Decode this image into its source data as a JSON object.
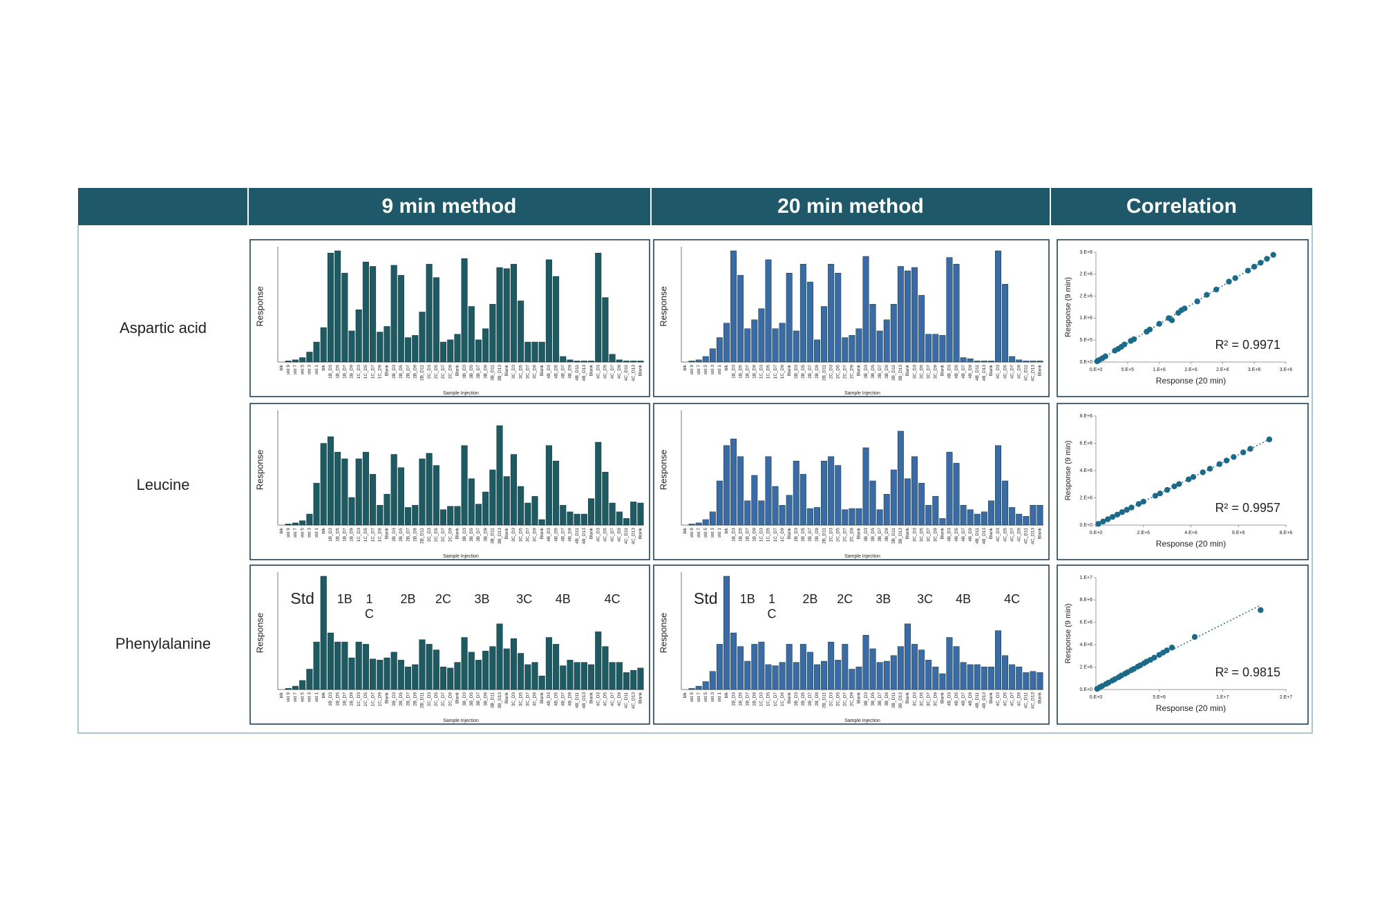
{
  "table": {
    "headers": [
      "9 min method",
      "20 min method",
      "Correlation"
    ],
    "rows": [
      "Aspartic acid",
      "Leucine",
      "Phenylalanine"
    ]
  },
  "chart_data": [
    {
      "type": "bar",
      "color": "#1d5a62",
      "ylim": [
        0,
        100
      ],
      "y_label": "Response",
      "x_label": "Sample Injection",
      "categories": [
        "blk",
        "std 9",
        "std 7",
        "std 5",
        "std 3",
        "std 1",
        "blk",
        "1B_D3",
        "1B_D5",
        "1B_D7",
        "1B_D9",
        "1C_D3",
        "1C_D5",
        "1C_D7",
        "1C_D9",
        "Blank",
        "2B_D3",
        "2B_D5",
        "2B_D7",
        "2B_D9",
        "2B_D11",
        "2C_D3",
        "2C_D5",
        "2C_D7",
        "2C_D9",
        "Blank",
        "3B_D3",
        "3B_D5",
        "3B_D7",
        "3B_D9",
        "3B_D11",
        "3B_D13",
        "Blank",
        "3C_D3",
        "3C_D5",
        "3C_D7",
        "3C_D9",
        "Blank",
        "4B_D3",
        "4B_D5",
        "4B_D7",
        "4B_D9",
        "4B_D11",
        "4B_D13",
        "Blank",
        "4C_D3",
        "4C_D5",
        "4C_D7",
        "4C_D9",
        "4C_D11",
        "4C_D13",
        "Blank"
      ],
      "values": [
        0,
        1,
        2,
        4,
        9,
        18,
        31,
        98,
        100,
        80,
        28,
        47,
        90,
        86,
        27,
        32,
        87,
        78,
        22,
        24,
        45,
        88,
        76,
        18,
        20,
        25,
        93,
        50,
        20,
        30,
        52,
        85,
        84,
        88,
        55,
        18,
        18,
        18,
        92,
        77,
        5,
        2,
        1,
        1,
        1,
        98,
        58,
        7,
        2,
        1,
        1,
        1
      ]
    },
    {
      "type": "bar",
      "color": "#3b6ba5",
      "ylim": [
        0,
        100
      ],
      "y_label": "Response",
      "x_label": "Sample Injection",
      "categories": [
        "blk",
        "std 9",
        "std 7",
        "std 5",
        "std 3",
        "std 1",
        "blk",
        "1B_D3",
        "1B_D5",
        "1B_D7",
        "1B_D9",
        "1C_D3",
        "1C_D5",
        "1C_D7",
        "1C_D9",
        "Blank",
        "2B_D3",
        "2B_D5",
        "2B_D7",
        "2B_D9",
        "2B_D11",
        "2C_D3",
        "2C_D5",
        "2C_D7",
        "2C_D9",
        "Blank",
        "3B_D3",
        "3B_D5",
        "3B_D7",
        "3B_D9",
        "3B_D11",
        "3B_D13",
        "Blank",
        "3C_D3",
        "3C_D5",
        "3C_D7",
        "3C_D9",
        "Blank",
        "4B_D3",
        "4B_D5",
        "4B_D7",
        "4B_D9",
        "4B_D11",
        "4B_D13",
        "Blank",
        "4C_D3",
        "4C_D5",
        "4C_D7",
        "4C_D9",
        "4C_D11",
        "4C_D13",
        "Blank"
      ],
      "values": [
        0,
        1,
        2,
        5,
        12,
        22,
        35,
        100,
        78,
        30,
        38,
        48,
        92,
        30,
        35,
        80,
        28,
        88,
        72,
        20,
        50,
        88,
        80,
        22,
        24,
        30,
        95,
        52,
        28,
        38,
        52,
        86,
        82,
        85,
        60,
        25,
        25,
        24,
        94,
        88,
        4,
        3,
        1,
        1,
        1,
        100,
        70,
        5,
        2,
        1,
        1,
        1
      ]
    },
    {
      "type": "scatter",
      "color": "#1b6a8a",
      "trendline": true,
      "x_label": "Response (20 min)",
      "y_label": "Response (9 min)",
      "annotation": "R² = 0.9971",
      "xlim": [
        0,
        3000000
      ],
      "ylim": [
        0,
        2500000
      ],
      "xticks": [
        {
          "value": 0,
          "label": "0.E+0"
        },
        {
          "value": 500000,
          "label": "5.E+5"
        },
        {
          "value": 1000000,
          "label": "1.E+6"
        },
        {
          "value": 1500000,
          "label": "2.E+6"
        },
        {
          "value": 2000000,
          "label": "2.E+6"
        },
        {
          "value": 2500000,
          "label": "3.E+6"
        },
        {
          "value": 3000000,
          "label": "3.E+6"
        }
      ],
      "yticks": [
        {
          "value": 0,
          "label": "0.E+0"
        },
        {
          "value": 500000,
          "label": "5.E+5"
        },
        {
          "value": 1000000,
          "label": "1.E+6"
        },
        {
          "value": 1500000,
          "label": "2.E+6"
        },
        {
          "value": 2000000,
          "label": "2.E+6"
        },
        {
          "value": 2500000,
          "label": "3.E+6"
        }
      ],
      "x": [
        20000,
        50000,
        100000,
        150000,
        300000,
        350000,
        400000,
        450000,
        550000,
        600000,
        800000,
        850000,
        1000000,
        1150000,
        1200000,
        1300000,
        1350000,
        1400000,
        1600000,
        1750000,
        1900000,
        2100000,
        2200000,
        2400000,
        2500000,
        2600000,
        2700000,
        2800000
      ],
      "values": [
        18000,
        45000,
        85000,
        130000,
        260000,
        300000,
        345000,
        400000,
        480000,
        520000,
        690000,
        740000,
        870000,
        1000000,
        950000,
        1120000,
        1180000,
        1220000,
        1380000,
        1530000,
        1650000,
        1830000,
        1910000,
        2080000,
        2170000,
        2260000,
        2350000,
        2440000
      ]
    },
    {
      "type": "bar",
      "color": "#1d5a62",
      "ylim": [
        0,
        100
      ],
      "y_label": "Response",
      "x_label": "Sample Injection",
      "categories": [
        "blk",
        "std 9",
        "std 7",
        "std 5",
        "std 3",
        "std 1",
        "blk",
        "1B_D3",
        "1B_D5",
        "1B_D7",
        "1B_D9",
        "1C_D3",
        "1C_D5",
        "1C_D7",
        "1C_D9",
        "Blank",
        "2B_D3",
        "2B_D5",
        "2B_D7",
        "2B_D9",
        "2B_D11",
        "2C_D3",
        "2C_D5",
        "2C_D7",
        "2C_D9",
        "Blank",
        "3B_D3",
        "3B_D5",
        "3B_D7",
        "3B_D9",
        "3B_D11",
        "3B_D13",
        "Blank",
        "3C_D3",
        "3C_D5",
        "3C_D7",
        "3C_D9",
        "Blank",
        "4B_D3",
        "4B_D5",
        "4B_D7",
        "4B_D9",
        "4B_D11",
        "4B_D13",
        "Blank",
        "4C_D3",
        "4C_D5",
        "4C_D7",
        "4C_D9",
        "4C_D11",
        "4C_D13",
        "Blank"
      ],
      "values": [
        0,
        1,
        2,
        4,
        10,
        38,
        74,
        80,
        66,
        60,
        25,
        60,
        66,
        46,
        18,
        28,
        64,
        52,
        16,
        18,
        60,
        65,
        54,
        14,
        17,
        17,
        72,
        42,
        19,
        30,
        50,
        90,
        44,
        64,
        35,
        20,
        26,
        5,
        72,
        58,
        18,
        12,
        10,
        10,
        24,
        75,
        48,
        20,
        12,
        6,
        21,
        20
      ]
    },
    {
      "type": "bar",
      "color": "#3b6ba5",
      "ylim": [
        0,
        100
      ],
      "y_label": "Response",
      "x_label": "Sample Injection",
      "categories": [
        "blk",
        "std 9",
        "std 7",
        "std 5",
        "std 3",
        "std 1",
        "blk",
        "1B_D3",
        "1B_D5",
        "1B_D7",
        "1B_D9",
        "1C_D3",
        "1C_D5",
        "1C_D7",
        "1C_D9",
        "Blank",
        "2B_D3",
        "2B_D5",
        "2B_D7",
        "2B_D9",
        "2B_D11",
        "2C_D3",
        "2C_D5",
        "2C_D7",
        "2C_D9",
        "Blank",
        "3B_D3",
        "3B_D5",
        "3B_D7",
        "3B_D9",
        "3B_D11",
        "3B_D13",
        "Blank",
        "3C_D3",
        "3C_D5",
        "3C_D7",
        "3C_D9",
        "Blank",
        "4B_D3",
        "4B_D5",
        "4B_D7",
        "4B_D9",
        "4B_D11",
        "4B_D13",
        "Blank",
        "4C_D3",
        "4C_D5",
        "4C_D7",
        "4C_D9",
        "4C_D11",
        "4C_D13",
        "Blank"
      ],
      "values": [
        0,
        1,
        2,
        5,
        12,
        40,
        72,
        78,
        62,
        22,
        45,
        22,
        62,
        35,
        18,
        27,
        58,
        46,
        15,
        16,
        58,
        62,
        54,
        14,
        15,
        15,
        70,
        40,
        14,
        28,
        50,
        85,
        42,
        62,
        38,
        18,
        26,
        6,
        66,
        56,
        18,
        14,
        10,
        12,
        22,
        72,
        40,
        16,
        10,
        8,
        18,
        18
      ]
    },
    {
      "type": "scatter",
      "color": "#1b6a8a",
      "trendline": true,
      "x_label": "Response (20 min)",
      "y_label": "Response (9 min)",
      "annotation": "R² = 0.9957",
      "xlim": [
        0,
        8000000
      ],
      "ylim": [
        0,
        8000000
      ],
      "xticks": [
        {
          "value": 0,
          "label": "0.E+0"
        },
        {
          "value": 2000000,
          "label": "2.E+6"
        },
        {
          "value": 4000000,
          "label": "4.E+6"
        },
        {
          "value": 6000000,
          "label": "6.E+6"
        },
        {
          "value": 8000000,
          "label": "8.E+6"
        }
      ],
      "yticks": [
        {
          "value": 0,
          "label": "0.E+0"
        },
        {
          "value": 2000000,
          "label": "2.E+6"
        },
        {
          "value": 4000000,
          "label": "4.E+6"
        },
        {
          "value": 6000000,
          "label": "6.E+6"
        },
        {
          "value": 8000000,
          "label": "8.E+6"
        }
      ],
      "x": [
        100000,
        300000,
        500000,
        700000,
        900000,
        1100000,
        1300000,
        1500000,
        1800000,
        2000000,
        2500000,
        2700000,
        3000000,
        3300000,
        3500000,
        3900000,
        4100000,
        4500000,
        4800000,
        5200000,
        5500000,
        5800000,
        6200000,
        6500000,
        7300000
      ],
      "values": [
        90000,
        260000,
        430000,
        600000,
        770000,
        950000,
        1120000,
        1290000,
        1550000,
        1720000,
        2150000,
        2320000,
        2580000,
        2840000,
        3010000,
        3350000,
        3530000,
        3870000,
        4130000,
        4470000,
        4730000,
        4990000,
        5330000,
        5590000,
        6280000
      ]
    },
    {
      "type": "bar",
      "color": "#1d5a62",
      "ylim": [
        0,
        100
      ],
      "y_label": "Response",
      "x_label": "Sample Injection",
      "annotations": [
        "Std",
        "1B",
        "1\nC",
        "2B",
        "2C",
        "3B",
        "3C",
        "4B",
        "4C"
      ],
      "categories": [
        "blk",
        "std 9",
        "std 7",
        "std 5",
        "std 3",
        "std 1",
        "blk",
        "1B_D3",
        "1B_D5",
        "1B_D7",
        "1B_D9",
        "1C_D3",
        "1C_D5",
        "1C_D7",
        "1C_D9",
        "Blank",
        "2B_D3",
        "2B_D5",
        "2B_D7",
        "2B_D9",
        "2B_D11",
        "2C_D3",
        "2C_D5",
        "2C_D7",
        "2C_D9",
        "Blank",
        "3B_D3",
        "3B_D5",
        "3B_D7",
        "3B_D9",
        "3B_D11",
        "3B_D13",
        "Blank",
        "3C_D3",
        "3C_D5",
        "3C_D7",
        "3C_D9",
        "Blank",
        "4B_D3",
        "4B_D5",
        "4B_D7",
        "4B_D9",
        "4B_D11",
        "4B_D13",
        "Blank",
        "4C_D3",
        "4C_D5",
        "4C_D7",
        "4C_D9",
        "4C_D11",
        "4C_D13",
        "Blank"
      ],
      "values": [
        0,
        1,
        3,
        8,
        18,
        42,
        100,
        50,
        42,
        42,
        28,
        42,
        40,
        27,
        26,
        28,
        33,
        26,
        20,
        22,
        44,
        40,
        35,
        20,
        19,
        24,
        46,
        33,
        26,
        34,
        38,
        58,
        36,
        45,
        32,
        22,
        24,
        12,
        46,
        40,
        21,
        26,
        24,
        24,
        22,
        51,
        38,
        24,
        24,
        15,
        17,
        19
      ]
    },
    {
      "type": "bar",
      "color": "#3b6ba5",
      "ylim": [
        0,
        100
      ],
      "y_label": "Response",
      "x_label": "Sample Injection",
      "annotations": [
        "Std",
        "1B",
        "1\nC",
        "2B",
        "2C",
        "3B",
        "3C",
        "4B",
        "4C"
      ],
      "categories": [
        "blk",
        "std 9",
        "std 7",
        "std 5",
        "std 3",
        "std 1",
        "blk",
        "1B_D3",
        "1B_D5",
        "1B_D7",
        "1B_D9",
        "1C_D3",
        "1C_D5",
        "1C_D7",
        "1C_D9",
        "Blank",
        "2B_D3",
        "2B_D5",
        "2B_D7",
        "2B_D9",
        "2B_D11",
        "2C_D3",
        "2C_D5",
        "2C_D7",
        "2C_D9",
        "Blank",
        "3B_D3",
        "3B_D5",
        "3B_D7",
        "3B_D9",
        "3B_D11",
        "3B_D13",
        "Blank",
        "3C_D3",
        "3C_D5",
        "3C_D7",
        "3C_D9",
        "Blank",
        "4B_D3",
        "4B_D5",
        "4B_D7",
        "4B_D9",
        "4B_D11",
        "4B_D13",
        "Blank",
        "4C_D3",
        "4C_D5",
        "4C_D7",
        "4C_D9",
        "4C_D11",
        "4C_D13",
        "Blank"
      ],
      "values": [
        0,
        1,
        3,
        7,
        16,
        40,
        100,
        50,
        38,
        25,
        40,
        42,
        22,
        21,
        24,
        40,
        24,
        40,
        33,
        22,
        25,
        42,
        26,
        40,
        18,
        20,
        48,
        36,
        24,
        25,
        30,
        38,
        58,
        40,
        35,
        26,
        20,
        14,
        46,
        38,
        24,
        22,
        22,
        20,
        20,
        52,
        30,
        22,
        20,
        15,
        16,
        15
      ]
    },
    {
      "type": "scatter",
      "color": "#1b6a8a",
      "trendline": true,
      "x_label": "Response (20 min)",
      "y_label": "Response (9 min)",
      "annotation": "R² = 0.9815",
      "xlim": [
        0,
        15000000
      ],
      "ylim": [
        0,
        10000000
      ],
      "xticks": [
        {
          "value": 0,
          "label": "0.E+0"
        },
        {
          "value": 5000000,
          "label": "5.E+6"
        },
        {
          "value": 10000000,
          "label": "1.E+7"
        },
        {
          "value": 15000000,
          "label": "2.E+7"
        }
      ],
      "yticks": [
        {
          "value": 0,
          "label": "0.E+0"
        },
        {
          "value": 2000000,
          "label": "2.E+6"
        },
        {
          "value": 4000000,
          "label": "4.E+6"
        },
        {
          "value": 6000000,
          "label": "6.E+6"
        },
        {
          "value": 8000000,
          "label": "8.E+6"
        },
        {
          "value": 10000000,
          "label": "1.E+7"
        }
      ],
      "x": [
        100000,
        300000,
        500000,
        800000,
        1000000,
        1300000,
        1500000,
        1800000,
        2000000,
        2300000,
        2500000,
        2800000,
        3000000,
        3300000,
        3500000,
        3800000,
        4000000,
        4300000,
        4600000,
        5000000,
        5300000,
        5600000,
        6000000,
        7800000,
        13000000
      ],
      "values": [
        60000,
        200000,
        320000,
        500000,
        620000,
        800000,
        930000,
        1100000,
        1250000,
        1420000,
        1550000,
        1730000,
        1850000,
        2050000,
        2170000,
        2350000,
        2500000,
        2650000,
        2850000,
        3100000,
        3300000,
        3500000,
        3750000,
        4700000,
        7100000
      ]
    }
  ]
}
